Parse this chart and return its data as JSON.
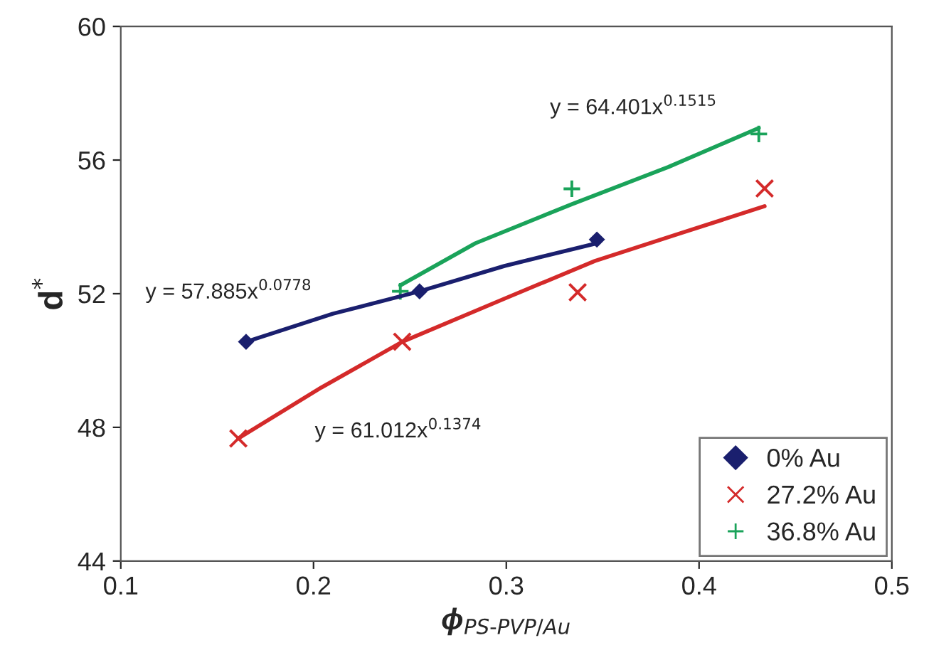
{
  "chart_data": {
    "type": "scatter",
    "xlabel": "ϕ$_{PS‐PVP/Au}$",
    "ylabel": "d$^{*}$",
    "xlim": [
      0.1,
      0.5
    ],
    "xticks": [
      0.1,
      0.2,
      0.3,
      0.4,
      0.5
    ],
    "ylim": [
      44,
      60
    ],
    "yticks": [
      44,
      48,
      52,
      56,
      60
    ],
    "grid": false,
    "legend": "bottom right",
    "series": [
      {
        "name": "0% Au",
        "color": "#1a1f6e",
        "marker": "diamond",
        "x": [
          0.165,
          0.255,
          0.347
        ],
        "values": [
          50.56,
          52.07,
          53.62
        ]
      },
      {
        "name": "27.2% Au",
        "color": "#d42a2a",
        "marker": "cross",
        "x": [
          0.161,
          0.246,
          0.337,
          0.434
        ],
        "values": [
          47.67,
          50.56,
          52.04,
          55.15
        ]
      },
      {
        "name": "36.8% Au",
        "color": "#1aa35a",
        "marker": "plus",
        "x": [
          0.245,
          0.334,
          0.431
        ],
        "values": [
          52.07,
          55.14,
          56.78
        ]
      },
      {
        "type": "line",
        "color": "#1a1f6e",
        "x": [
          0.165,
          0.21,
          0.255,
          0.299,
          0.347
        ],
        "values": [
          50.56,
          51.4,
          52.07,
          52.83,
          53.51
        ]
      },
      {
        "type": "line",
        "color": "#d42a2a",
        "x": [
          0.161,
          0.204,
          0.246,
          0.299,
          0.346,
          0.391,
          0.434
        ],
        "values": [
          47.67,
          49.19,
          50.56,
          51.85,
          52.98,
          53.82,
          54.62
        ]
      },
      {
        "type": "line",
        "color": "#1aa35a",
        "x": [
          0.245,
          0.284,
          0.334,
          0.384,
          0.431
        ],
        "values": [
          52.25,
          53.51,
          54.68,
          55.79,
          56.96
        ]
      }
    ],
    "annotations": [
      "y = 57.885x$^{0.0778}$",
      "y = 61.012x$^{0.1374}$",
      "y = 64.401x$^{0.1515}$"
    ]
  }
}
